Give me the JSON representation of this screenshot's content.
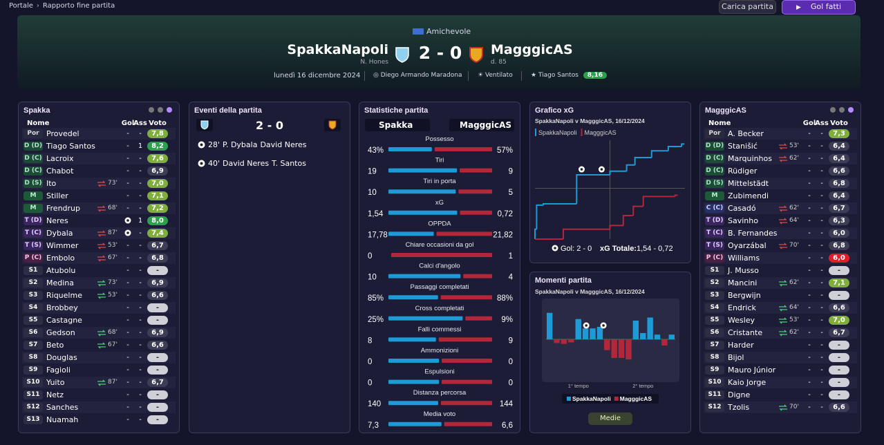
{
  "breadcrumb": [
    "Portale",
    "Rapporto fine partita"
  ],
  "toolbar": {
    "load": "Carica partita",
    "goals": "Gol fatti"
  },
  "header": {
    "competition": "Amichevole",
    "home": "SpakkaNapoli",
    "home_manager": "N. Hones",
    "score": "2 - 0",
    "away": "MagggicAS",
    "away_manager": "d. 85",
    "date": "lunedì 16 dicembre 2024",
    "stadium": "Diego Armando Maradona",
    "weather": "Ventilato",
    "motm": "Tiago Santos",
    "motm_rating": "8,16"
  },
  "home_lineup": {
    "title": "Spakka",
    "columns": [
      "Nome",
      "Gol",
      "Ass",
      "Voto"
    ],
    "players": [
      {
        "pos": "Por",
        "name": "Provedel",
        "gol": "-",
        "ass": "-",
        "voto": "7,8"
      },
      {
        "pos": "D (D)",
        "name": "Tiago Santos",
        "gol": "-",
        "ass": "1",
        "voto": "8,2"
      },
      {
        "pos": "D (C)",
        "name": "Lacroix",
        "gol": "-",
        "ass": "-",
        "voto": "7,6"
      },
      {
        "pos": "D (C)",
        "name": "Chabot",
        "gol": "-",
        "ass": "-",
        "voto": "6,9"
      },
      {
        "pos": "D (S)",
        "name": "Ito",
        "sub": "73'",
        "gol": "-",
        "ass": "-",
        "voto": "7,0"
      },
      {
        "pos": "M",
        "name": "Stiller",
        "gol": "-",
        "ass": "-",
        "voto": "7,1"
      },
      {
        "pos": "M",
        "name": "Frendrup",
        "sub": "68'",
        "gol": "-",
        "ass": "-",
        "voto": "7,2"
      },
      {
        "pos": "T (D)",
        "name": "Neres",
        "goal_icon": true,
        "ass": "1",
        "voto": "8,0"
      },
      {
        "pos": "T (C)",
        "name": "Dybala",
        "sub": "87'",
        "goal_icon": true,
        "ass": "-",
        "voto": "7,4"
      },
      {
        "pos": "T (S)",
        "name": "Wimmer",
        "sub": "53'",
        "gol": "-",
        "ass": "-",
        "voto": "6,7"
      },
      {
        "pos": "P (C)",
        "name": "Embolo",
        "sub": "67'",
        "gol": "-",
        "ass": "-",
        "voto": "6,8"
      },
      {
        "pos": "S1",
        "name": "Atubolu",
        "gol": "-",
        "ass": "-",
        "voto": "-"
      },
      {
        "pos": "S2",
        "name": "Medina",
        "sub": "73'",
        "gol": "-",
        "ass": "-",
        "voto": "6,9"
      },
      {
        "pos": "S3",
        "name": "Riquelme",
        "sub": "53'",
        "gol": "-",
        "ass": "-",
        "voto": "6,6"
      },
      {
        "pos": "S4",
        "name": "Brobbey",
        "gol": "-",
        "ass": "-",
        "voto": "-"
      },
      {
        "pos": "S5",
        "name": "Castagne",
        "gol": "-",
        "ass": "-",
        "voto": "-"
      },
      {
        "pos": "S6",
        "name": "Gedson",
        "sub": "68'",
        "gol": "-",
        "ass": "-",
        "voto": "6,9"
      },
      {
        "pos": "S7",
        "name": "Beto",
        "sub": "67'",
        "gol": "-",
        "ass": "-",
        "voto": "6,6"
      },
      {
        "pos": "S8",
        "name": "Douglas",
        "gol": "-",
        "ass": "-",
        "voto": "-"
      },
      {
        "pos": "S9",
        "name": "Fagioli",
        "gol": "-",
        "ass": "-",
        "voto": "-"
      },
      {
        "pos": "S10",
        "name": "Yuito",
        "sub": "87'",
        "gol": "-",
        "ass": "-",
        "voto": "6,7"
      },
      {
        "pos": "S11",
        "name": "Netz",
        "gol": "-",
        "ass": "-",
        "voto": "-"
      },
      {
        "pos": "S12",
        "name": "Sanches",
        "gol": "-",
        "ass": "-",
        "voto": "-"
      },
      {
        "pos": "S13",
        "name": "Nuamah",
        "gol": "-",
        "ass": "-",
        "voto": "-"
      }
    ]
  },
  "events": {
    "title": "Eventi della partita",
    "score": "2 - 0",
    "items": [
      {
        "minute": "28'",
        "scorer": "P. Dybala",
        "assist": "David Neres"
      },
      {
        "minute": "40'",
        "scorer": "David Neres",
        "assist": "T. Santos"
      }
    ]
  },
  "stats": {
    "title": "Statistiche partita",
    "home": "Spakka",
    "away": "MagggicAS",
    "rows": [
      {
        "label": "Possesso",
        "values": [
          43,
          57
        ],
        "value_labels": [
          "43%",
          "57%"
        ]
      },
      {
        "label": "Tiri",
        "values": [
          19,
          9
        ]
      },
      {
        "label": "Tiri in porta",
        "values": [
          10,
          5
        ]
      },
      {
        "label": "xG",
        "values": [
          1.54,
          0.72
        ],
        "value_labels": [
          "1,54",
          "0,72"
        ]
      },
      {
        "label": "OPPDA",
        "values": [
          17.78,
          21.82
        ],
        "value_labels": [
          "17,78",
          "21,82"
        ]
      },
      {
        "label": "Chiare occasioni da gol",
        "values": [
          0,
          1
        ]
      },
      {
        "label": "Calci d'angolo",
        "values": [
          10,
          4
        ]
      },
      {
        "label": "Passaggi completati",
        "values": [
          85,
          88
        ],
        "value_labels": [
          "85%",
          "88%"
        ]
      },
      {
        "label": "Cross completati",
        "values": [
          25,
          9
        ],
        "value_labels": [
          "25%",
          "9%"
        ]
      },
      {
        "label": "Falli commessi",
        "values": [
          8,
          9
        ]
      },
      {
        "label": "Ammonizioni",
        "values": [
          0,
          0
        ]
      },
      {
        "label": "Espulsioni",
        "values": [
          0,
          0
        ]
      },
      {
        "label": "Distanza percorsa",
        "values": [
          140,
          144
        ]
      },
      {
        "label": "Media voto",
        "values": [
          7.3,
          6.6
        ],
        "value_labels": [
          "7,3",
          "6,6"
        ]
      }
    ]
  },
  "xg_chart": {
    "type": "line",
    "title": "Grafico xG",
    "subtitle": "SpakkaNapoli v MagggicAS, 16/12/2024",
    "xlim": [
      0,
      90
    ],
    "ylim": [
      0,
      1.6
    ],
    "series": [
      {
        "name": "SpakkaNapoli",
        "color": "#1e9bd7",
        "x": [
          0,
          1,
          5,
          25,
          45,
          55,
          60,
          70,
          80,
          88
        ],
        "values": [
          0.16,
          0.55,
          0.57,
          1.04,
          1.1,
          1.2,
          1.32,
          1.43,
          1.5,
          1.54
        ]
      },
      {
        "name": "MagggicAS",
        "color": "#b2283a",
        "x": [
          0,
          17,
          45,
          53,
          59,
          65,
          84
        ],
        "values": [
          0,
          0.16,
          0.22,
          0.38,
          0.53,
          0.69,
          0.71
        ]
      }
    ],
    "goal_minutes": [
      28,
      40
    ],
    "goals_text": "Gol: 2 - 0",
    "xg_label": "xG Totale:",
    "xg_text": "1,54 - 0,72"
  },
  "momentum": {
    "type": "bar",
    "title": "Momenti partita",
    "subtitle": "SpakkaNapoli v MagggicAS, 16/12/2024",
    "ylim": [
      -1,
      1
    ],
    "values": [
      0.85,
      -0.12,
      -0.15,
      -0.1,
      0.65,
      0.35,
      0.35,
      0.4,
      -0.35,
      -0.6,
      -0.6,
      -0.65,
      0.6,
      0.2,
      0.7,
      0.15,
      -0.2,
      0.15
    ],
    "halves": [
      "1° tempo",
      "2° tempo"
    ],
    "series": [
      {
        "name": "SpakkaNapoli",
        "color": "#1e9bd7"
      },
      {
        "name": "MagggicAS",
        "color": "#b2283a"
      }
    ],
    "button": "Medie"
  },
  "away_lineup": {
    "title": "MagggicAS",
    "columns": [
      "Nome",
      "Gol",
      "Ass",
      "Voto"
    ],
    "players": [
      {
        "pos": "Por",
        "name": "A. Becker",
        "gol": "-",
        "ass": "-",
        "voto": "7,3"
      },
      {
        "pos": "D (D)",
        "name": "Stanišić",
        "sub": "53'",
        "gol": "-",
        "ass": "-",
        "voto": "6,4"
      },
      {
        "pos": "D (C)",
        "name": "Marquinhos",
        "sub": "62'",
        "gol": "-",
        "ass": "-",
        "voto": "6,4"
      },
      {
        "pos": "D (C)",
        "name": "Rüdiger",
        "gol": "-",
        "ass": "-",
        "voto": "6,6"
      },
      {
        "pos": "D (S)",
        "name": "Mittelstädt",
        "gol": "-",
        "ass": "-",
        "voto": "6,8"
      },
      {
        "pos": "M",
        "name": "Zubimendi",
        "gol": "-",
        "ass": "-",
        "voto": "6,4"
      },
      {
        "pos": "C (C)",
        "name": "Casadó",
        "sub": "62'",
        "gol": "-",
        "ass": "-",
        "voto": "6,7"
      },
      {
        "pos": "T (D)",
        "name": "Savinho",
        "sub": "64'",
        "gol": "-",
        "ass": "-",
        "voto": "6,3"
      },
      {
        "pos": "T (C)",
        "name": "B. Fernandes",
        "gol": "-",
        "ass": "-",
        "voto": "6,0"
      },
      {
        "pos": "T (S)",
        "name": "Oyarzábal",
        "sub": "70'",
        "gol": "-",
        "ass": "-",
        "voto": "6,8"
      },
      {
        "pos": "P (C)",
        "name": "Williams",
        "gol": "-",
        "ass": "-",
        "voto": "6,0",
        "rating_alert": true
      },
      {
        "pos": "S1",
        "name": "J. Musso",
        "gol": "-",
        "ass": "-",
        "voto": "-"
      },
      {
        "pos": "S2",
        "name": "Mancini",
        "sub": "62'",
        "gol": "-",
        "ass": "-",
        "voto": "7,1"
      },
      {
        "pos": "S3",
        "name": "Bergwijn",
        "gol": "-",
        "ass": "-",
        "voto": "-"
      },
      {
        "pos": "S4",
        "name": "Endrick",
        "sub": "64'",
        "gol": "-",
        "ass": "-",
        "voto": "6,6"
      },
      {
        "pos": "S5",
        "name": "Wesley",
        "sub": "53'",
        "gol": "-",
        "ass": "-",
        "voto": "7,0"
      },
      {
        "pos": "S6",
        "name": "Cristante",
        "sub": "62'",
        "gol": "-",
        "ass": "-",
        "voto": "6,7"
      },
      {
        "pos": "S7",
        "name": "Harder",
        "gol": "-",
        "ass": "-",
        "voto": "-"
      },
      {
        "pos": "S8",
        "name": "Bijol",
        "gol": "-",
        "ass": "-",
        "voto": "-"
      },
      {
        "pos": "S9",
        "name": "Mauro Júnior",
        "gol": "-",
        "ass": "-",
        "voto": "-"
      },
      {
        "pos": "S10",
        "name": "Kaio Jorge",
        "gol": "-",
        "ass": "-",
        "voto": "-"
      },
      {
        "pos": "S11",
        "name": "Digne",
        "gol": "-",
        "ass": "-",
        "voto": "-"
      },
      {
        "pos": "S12",
        "name": "Tzolis",
        "sub": "70'",
        "gol": "-",
        "ass": "-",
        "voto": "6,6"
      }
    ]
  }
}
